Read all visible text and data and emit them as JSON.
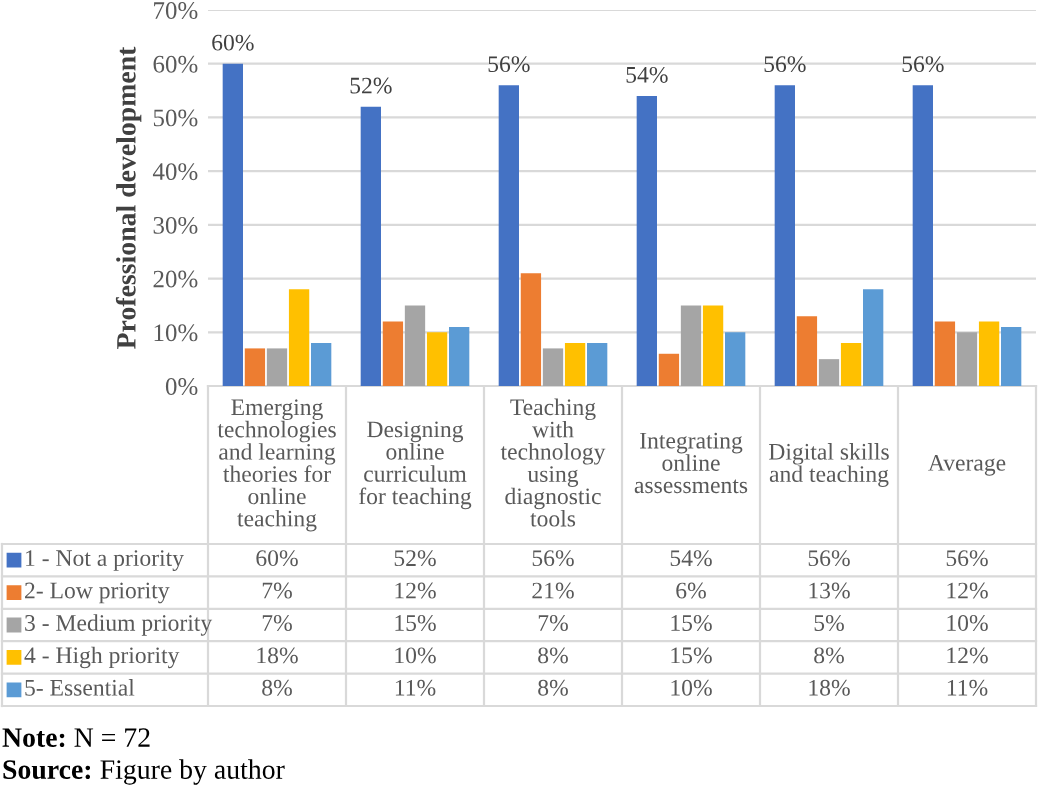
{
  "chart_data": {
    "type": "bar",
    "ylabel": "Professional development",
    "categories": [
      "Emerging\ntechnologies\nand learning\ntheories for\nonline\nteaching",
      "Designing\nonline\ncurriculum\nfor teaching",
      "Teaching\nwith\ntechnology\nusing\ndiagnostic\ntools",
      "Integrating\nonline\nassessments",
      "Digital skills\nand teaching",
      "Average"
    ],
    "series": [
      {
        "name": "1 - Not a priority",
        "color": "#4472c4",
        "values": [
          60,
          52,
          56,
          54,
          56,
          56
        ],
        "value_labels": [
          "60%",
          "52%",
          "56%",
          "54%",
          "56%",
          "56%"
        ]
      },
      {
        "name": "2- Low priority",
        "color": "#ed7d31",
        "values": [
          7,
          12,
          21,
          6,
          13,
          12
        ],
        "value_labels": [
          "7%",
          "12%",
          "21%",
          "6%",
          "13%",
          "12%"
        ]
      },
      {
        "name": "3 - Medium priority",
        "color": "#a5a5a5",
        "values": [
          7,
          15,
          7,
          15,
          5,
          10
        ],
        "value_labels": [
          "7%",
          "15%",
          "7%",
          "15%",
          "5%",
          "10%"
        ]
      },
      {
        "name": "4 - High priority",
        "color": "#ffc000",
        "values": [
          18,
          10,
          8,
          15,
          8,
          12
        ],
        "value_labels": [
          "18%",
          "10%",
          "8%",
          "15%",
          "8%",
          "12%"
        ]
      },
      {
        "name": "5- Essential",
        "color": "#5b9bd5",
        "values": [
          8,
          11,
          8,
          10,
          18,
          11
        ],
        "value_labels": [
          "8%",
          "11%",
          "8%",
          "10%",
          "18%",
          "11%"
        ]
      }
    ],
    "annotations": [
      "60%",
      "52%",
      "56%",
      "54%",
      "56%",
      "56%",
      "Note: N = 72",
      "Source: Figure by author"
    ],
    "ylim": [
      0,
      70
    ],
    "yticks": [
      {
        "value": 0,
        "label": "0%"
      },
      {
        "value": 10,
        "label": "10%"
      },
      {
        "value": 20,
        "label": "20%"
      },
      {
        "value": 30,
        "label": "30%"
      },
      {
        "value": 40,
        "label": "40%"
      },
      {
        "value": 50,
        "label": "50%"
      },
      {
        "value": 60,
        "label": "60%"
      },
      {
        "value": 70,
        "label": "70%"
      }
    ],
    "grid": "y",
    "legend": "bottom left"
  }
}
